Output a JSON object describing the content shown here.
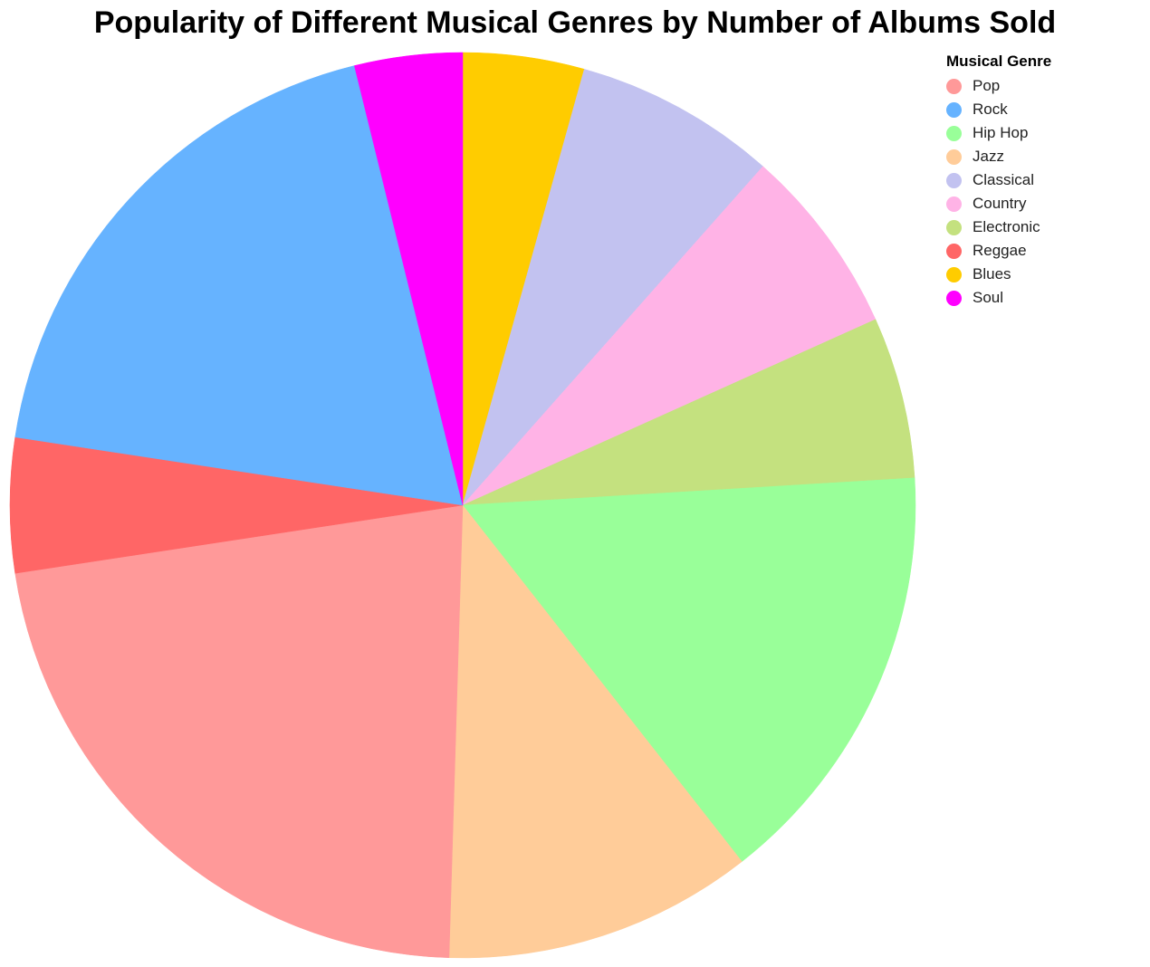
{
  "chart_data": {
    "type": "pie",
    "title": "Popularity of Different Musical Genres by Number of Albums Sold",
    "legend": {
      "title": "Musical Genre",
      "placement": "top-right"
    },
    "slice_order": [
      "Blues",
      "Classical",
      "Country",
      "Electronic",
      "Hip Hop",
      "Jazz",
      "Pop",
      "Reggae",
      "Rock",
      "Soul"
    ],
    "series": [
      {
        "name": "Pop",
        "value": 23.0,
        "color": "#ff9999"
      },
      {
        "name": "Rock",
        "value": 19.5,
        "color": "#66b3ff"
      },
      {
        "name": "Hip Hop",
        "value": 16.0,
        "color": "#99ff99"
      },
      {
        "name": "Jazz",
        "value": 11.5,
        "color": "#ffcc99"
      },
      {
        "name": "Classical",
        "value": 7.5,
        "color": "#c2c2f0"
      },
      {
        "name": "Country",
        "value": 7.0,
        "color": "#ffb3e6"
      },
      {
        "name": "Electronic",
        "value": 6.0,
        "color": "#c4e17f"
      },
      {
        "name": "Reggae",
        "value": 5.0,
        "color": "#ff6666"
      },
      {
        "name": "Blues",
        "value": 4.5,
        "color": "#ffcc00"
      },
      {
        "name": "Soul",
        "value": 4.0,
        "color": "#ff00ff"
      }
    ]
  }
}
